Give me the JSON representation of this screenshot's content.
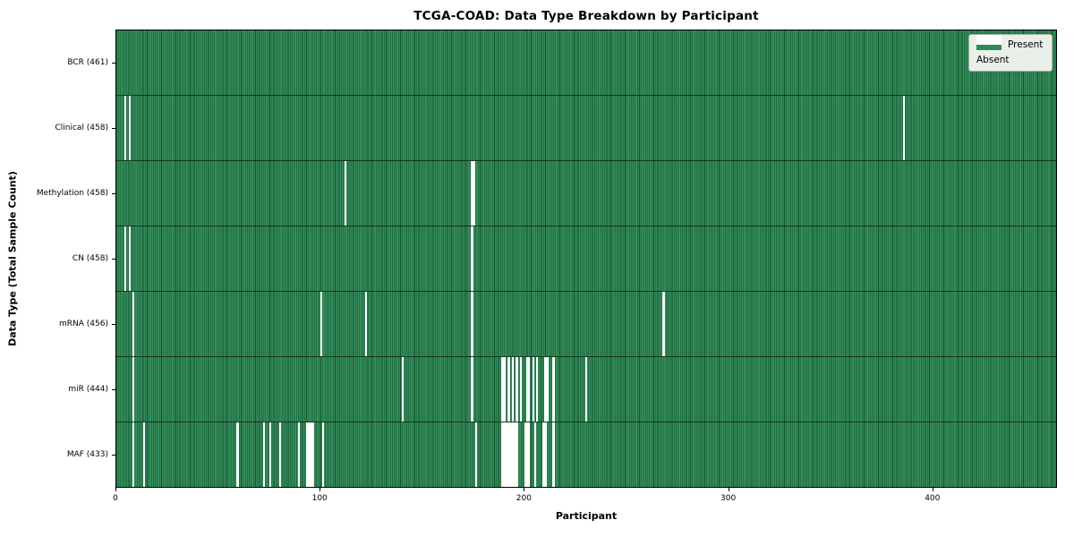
{
  "title": "TCGA-COAD: Data Type Breakdown by Participant",
  "legend": {
    "present_label": "Present",
    "absent_label": "Absent"
  },
  "colors": {
    "present": "#2e8b57",
    "present_edge": "#1a5132",
    "absent": "#ffffff",
    "legend_bg": "#e9efe9",
    "axis": "#000000",
    "background": "#ffffff"
  },
  "chart_data": {
    "type": "heatmap",
    "title": "TCGA-COAD: Data Type Breakdown by Participant",
    "xlabel": "Participant",
    "ylabel": "Data Type (Total Sample Count)",
    "legend_entries": [
      "Present",
      "Absent"
    ],
    "legend_position": "upper right",
    "grid": false,
    "n_participants": 461,
    "x_range": [
      0,
      461
    ],
    "x_ticks": [
      0,
      100,
      200,
      300,
      400
    ],
    "rows": [
      {
        "name": "BCR",
        "label": "BCR (461)",
        "present_count": 461,
        "absent_participants": []
      },
      {
        "name": "Clinical",
        "label": "Clinical (458)",
        "present_count": 458,
        "absent_participants": [
          4,
          6,
          386
        ]
      },
      {
        "name": "Methylation",
        "label": "Methylation (458)",
        "present_count": 458,
        "absent_participants": [
          112,
          174,
          175
        ]
      },
      {
        "name": "CN",
        "label": "CN (458)",
        "present_count": 458,
        "absent_participants": [
          4,
          6,
          174
        ]
      },
      {
        "name": "mRNA",
        "label": "mRNA (456)",
        "present_count": 456,
        "absent_participants": [
          8,
          100,
          122,
          174,
          268
        ]
      },
      {
        "name": "miR",
        "label": "miR (444)",
        "present_count": 444,
        "absent_participants": [
          8,
          140,
          174,
          189,
          190,
          192,
          194,
          196,
          198,
          201,
          202,
          204,
          206,
          210,
          211,
          214,
          230
        ]
      },
      {
        "name": "MAF",
        "label": "MAF (433)",
        "present_count": 433,
        "absent_participants": [
          8,
          13,
          59,
          72,
          75,
          80,
          89,
          93,
          94,
          95,
          96,
          101,
          176,
          189,
          190,
          191,
          192,
          193,
          194,
          195,
          196,
          200,
          201,
          202,
          205,
          209,
          210,
          214
        ]
      }
    ]
  }
}
